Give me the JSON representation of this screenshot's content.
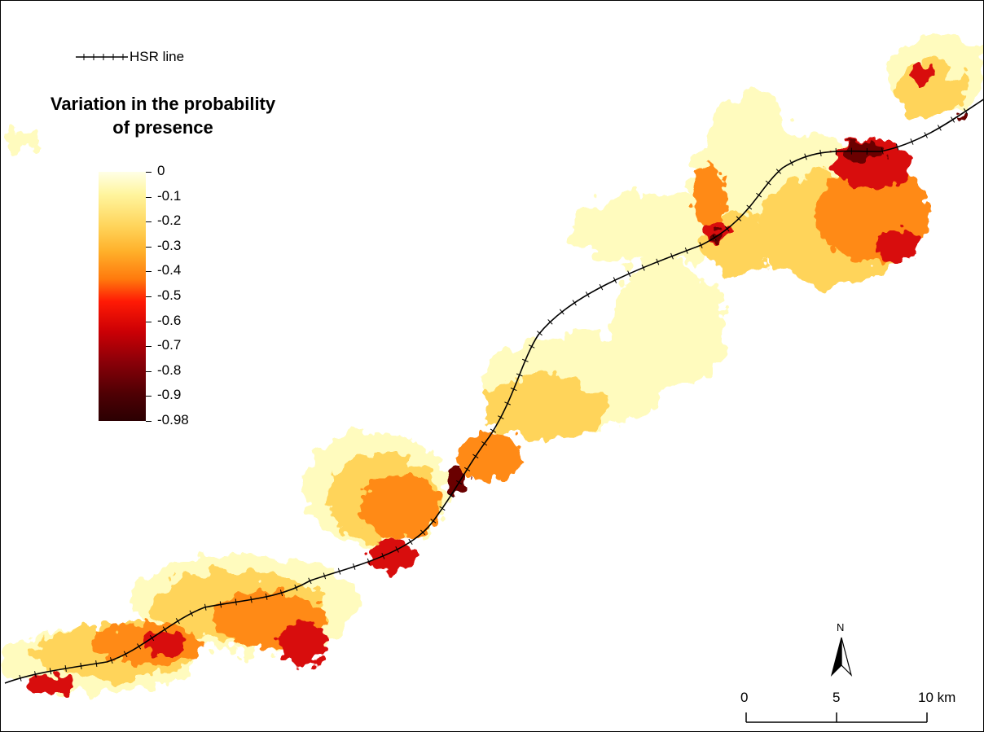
{
  "legend": {
    "line_label": "HSR line",
    "title_line1": "Variation in the probability",
    "title_line2": "of presence",
    "ticks": [
      "0",
      "-0.1",
      "-0.2",
      "-0.3",
      "-0.4",
      "-0.5",
      "-0.6",
      "-0.7",
      "-0.8",
      "-0.9",
      "-0.98"
    ]
  },
  "north_arrow": {
    "label": "N"
  },
  "scale_bar": {
    "labels": [
      "0",
      "5",
      "10 km"
    ]
  },
  "colors": {
    "line": "#000000",
    "ramp": [
      "#ffffe6",
      "#fff59e",
      "#ffd45a",
      "#ffb02a",
      "#ff7a0d",
      "#ff1a05",
      "#cc0005",
      "#8c0008",
      "#4f0004",
      "#2b0002"
    ]
  }
}
